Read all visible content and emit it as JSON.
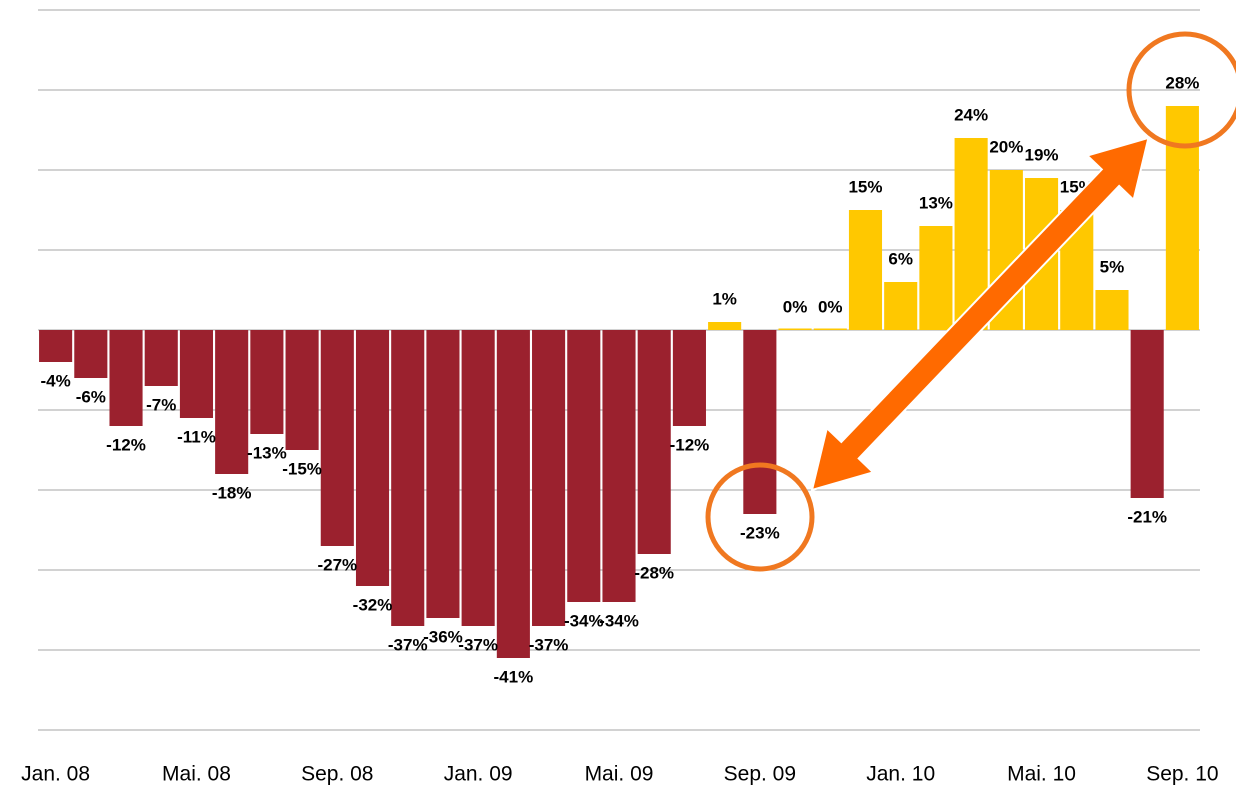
{
  "chart_data": {
    "type": "bar",
    "categories": [
      "Jan. 08",
      null,
      null,
      null,
      "Mai. 08",
      null,
      null,
      null,
      "Sep. 08",
      null,
      null,
      null,
      "Jan. 09",
      null,
      null,
      null,
      "Mai. 09",
      null,
      null,
      null,
      "Sep. 09",
      null,
      null,
      null,
      "Jan. 10",
      null,
      null,
      null,
      "Mai. 10",
      null,
      null,
      null,
      "Sep. 10"
    ],
    "values": [
      -4,
      -6,
      -12,
      -7,
      -11,
      -18,
      -13,
      -15,
      -27,
      -32,
      -37,
      -36,
      -37,
      -41,
      -37,
      -34,
      -34,
      -28,
      -12,
      1,
      -23,
      0,
      0,
      15,
      6,
      13,
      24,
      20,
      19,
      15,
      5,
      -21,
      28
    ],
    "value_labels": [
      "-4%",
      "-6%",
      "-12%",
      "-7%",
      "-11%",
      "-18%",
      "-13%",
      "-15%",
      "-27%",
      "-32%",
      "-37%",
      "-36%",
      "-37%",
      "-41%",
      "-37%",
      "-34%",
      "-34%",
      "-28%",
      "-12%",
      "1%",
      "-23%",
      "0%",
      "0%",
      "15%",
      "6%",
      "13%",
      "24%",
      "20%",
      "19%",
      "15%",
      "5%",
      "-21%",
      "28%"
    ],
    "color": "#ffc800",
    "negative_color": "#9b212e",
    "ylim": [
      -50,
      40
    ],
    "yticks": [
      -50,
      -40,
      -30,
      -20,
      -10,
      0,
      10,
      20,
      30,
      40
    ],
    "grid": true
  }
}
